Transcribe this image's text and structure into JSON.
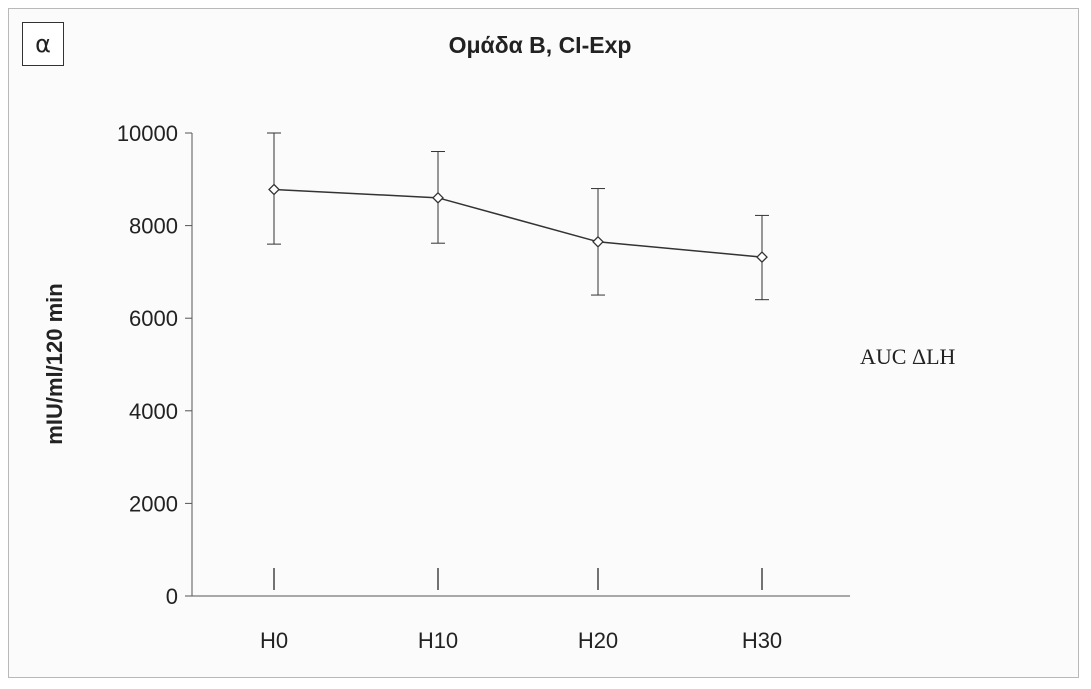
{
  "panel_label": "α",
  "annotation": "AUC ΔLH",
  "chart_data": {
    "type": "line",
    "title": "Ομάδα B, CI-Exp",
    "xlabel": "",
    "ylabel": "mIU/ml/120 min",
    "categories": [
      "H0",
      "H10",
      "H20",
      "H30"
    ],
    "series": [
      {
        "values": [
          8780,
          8600,
          7650,
          7320
        ],
        "error_low": [
          7600,
          7620,
          6500,
          6400
        ],
        "error_high": [
          10000,
          9600,
          8800,
          8220
        ]
      }
    ],
    "ylim": [
      0,
      10000
    ],
    "yticks": [
      0,
      2000,
      4000,
      6000,
      8000,
      10000
    ],
    "ytick_labels": [
      "0",
      "2000",
      "4000",
      "6000",
      "8000",
      "10000"
    ],
    "grid": false,
    "marker": "diamond",
    "line_color": "#333333"
  }
}
